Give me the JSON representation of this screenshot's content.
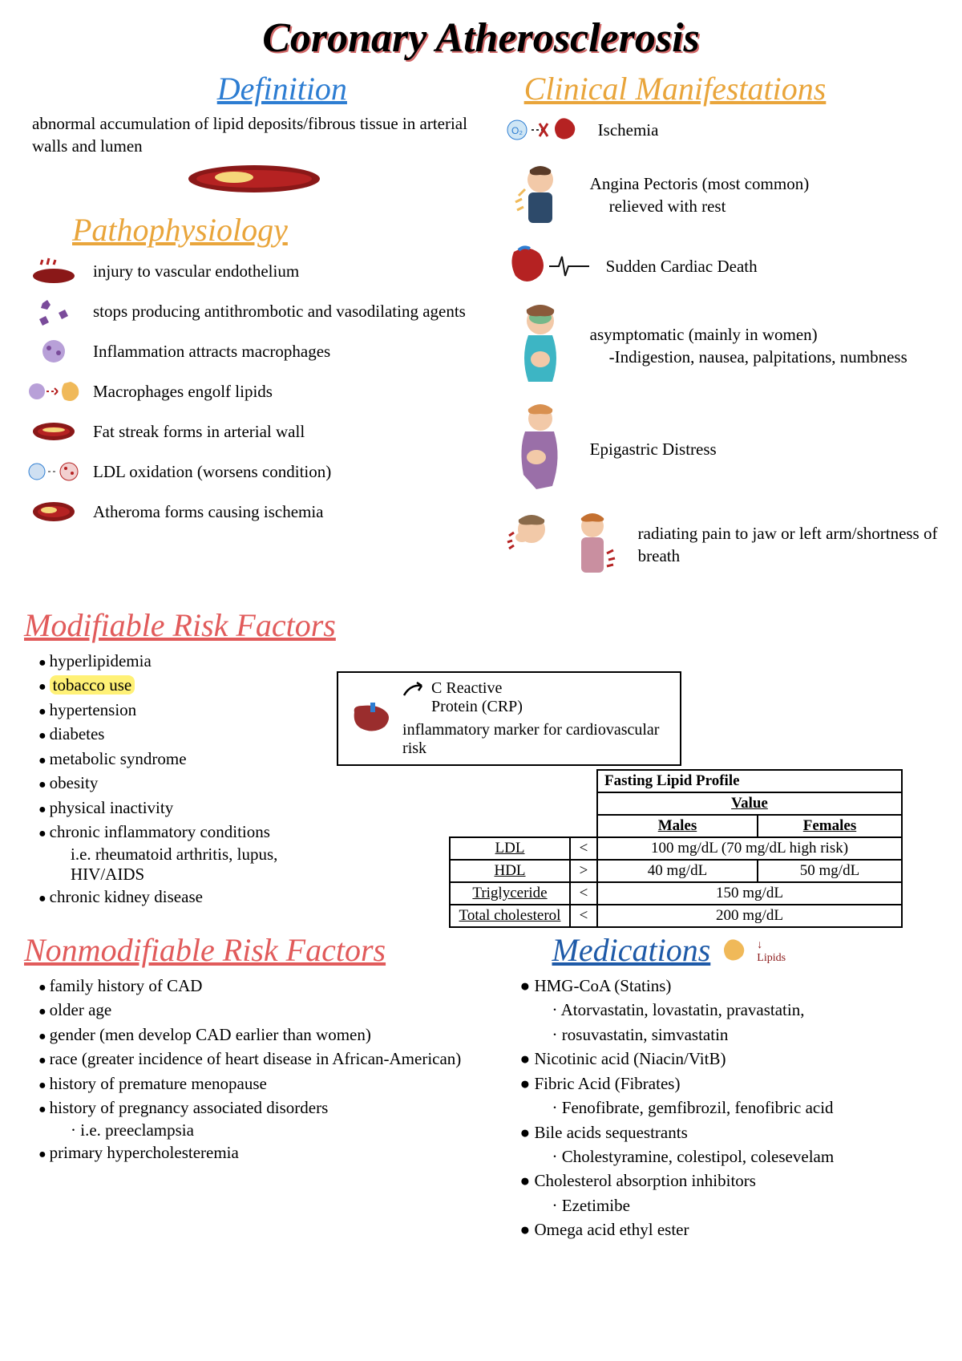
{
  "title": "Coronary Atherosclerosis",
  "colors": {
    "blue": "#2d7dd2",
    "orange": "#e9a53b",
    "red": "#e15b5b",
    "darkblue": "#1e5aa8",
    "black": "#111111"
  },
  "definition": {
    "heading": "Definition",
    "heading_color": "#2d7dd2",
    "text": "abnormal accumulation of lipid deposits/fibrous tissue in arterial walls and lumen"
  },
  "pathophysiology": {
    "heading": "Pathophysiology",
    "heading_color": "#e9a53b",
    "items": [
      "injury to vascular endothelium",
      "stops producing antithrombotic and vasodilating agents",
      "Inflammation attracts macrophages",
      "Macrophages engolf lipids",
      "Fat streak forms in arterial wall",
      "LDL oxidation (worsens condition)",
      "Atheroma forms causing ischemia"
    ]
  },
  "clinical": {
    "heading": "Clinical Manifestations",
    "heading_color": "#e9a53b",
    "items": [
      {
        "label": "Ischemia",
        "sub": ""
      },
      {
        "label": "Angina Pectoris (most common)",
        "sub": "relieved with rest"
      },
      {
        "label": "Sudden Cardiac Death",
        "sub": ""
      },
      {
        "label": "asymptomatic (mainly in women)",
        "sub": "-Indigestion, nausea, palpitations, numbness"
      },
      {
        "label": "Epigastric Distress",
        "sub": ""
      },
      {
        "label": "radiating pain to jaw or left arm/shortness of breath",
        "sub": ""
      }
    ]
  },
  "modifiable": {
    "heading": "Modifiable Risk Factors",
    "heading_color": "#e15b5b",
    "items": [
      "hyperlipidemia",
      "tobacco use",
      "hypertension",
      "diabetes",
      "metabolic syndrome",
      "obesity",
      "physical inactivity",
      "chronic inflammatory conditions",
      "chronic kidney disease"
    ],
    "sub_item": "i.e. rheumatoid arthritis, lupus, HIV/AIDS",
    "highlighted_index": 1
  },
  "crp_box": {
    "line1": "C Reactive",
    "line2": "Protein (CRP)",
    "line3": "inflammatory marker for cardiovascular risk"
  },
  "lipid_table": {
    "title": "Fasting Lipid Profile",
    "value_label": "Value",
    "col_headers": [
      "Males",
      "Females"
    ],
    "rows": [
      {
        "name": "LDL",
        "op": "<",
        "values": [
          "100 mg/dL (70 mg/dL high risk)"
        ],
        "colspan": 2
      },
      {
        "name": "HDL",
        "op": ">",
        "values": [
          "40 mg/dL",
          "50 mg/dL"
        ],
        "colspan": 1
      },
      {
        "name": "Triglyceride",
        "op": "<",
        "values": [
          "150 mg/dL"
        ],
        "colspan": 2
      },
      {
        "name": "Total cholesterol",
        "op": "<",
        "values": [
          "200 mg/dL"
        ],
        "colspan": 2
      }
    ]
  },
  "nonmodifiable": {
    "heading": "Nonmodifiable Risk Factors",
    "heading_color": "#e15b5b",
    "items": [
      "family history of CAD",
      "older age",
      "gender (men develop CAD earlier than women)",
      "race (greater incidence of heart disease in African-American)",
      "history of premature menopause",
      "history of pregnancy associated disorders",
      "primary hypercholesteremia"
    ],
    "sub_item": "· i.e. preeclampsia",
    "sub_after_index": 5
  },
  "medications": {
    "heading": "Medications",
    "heading_color": "#1e5aa8",
    "lipids_label": "Lipids",
    "items": [
      {
        "name": "HMG-CoA (Statins)",
        "subs": [
          "· Atorvastatin, lovastatin, pravastatin,",
          "· rosuvastatin, simvastatin"
        ]
      },
      {
        "name": "Nicotinic acid (Niacin/VitB)",
        "subs": []
      },
      {
        "name": "Fibric Acid (Fibrates)",
        "subs": [
          "· Fenofibrate, gemfibrozil, fenofibric acid"
        ]
      },
      {
        "name": "Bile acids sequestrants",
        "subs": [
          "· Cholestyramine, colestipol, colesevelam"
        ]
      },
      {
        "name": "Cholesterol absorption inhibitors",
        "subs": [
          "· Ezetimibe"
        ]
      },
      {
        "name": "Omega  acid ethyl ester",
        "subs": []
      }
    ]
  }
}
